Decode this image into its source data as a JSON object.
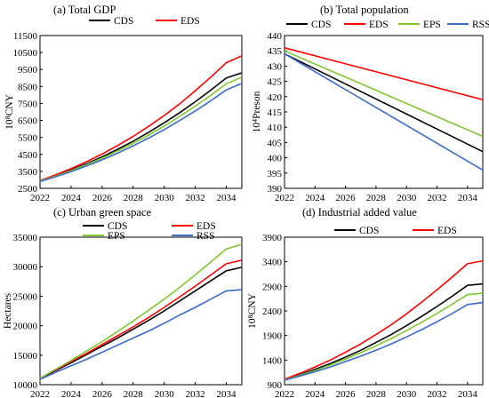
{
  "chart_data": [
    {
      "type": "line",
      "title": "(a) Total GDP",
      "xlabel": "",
      "ylabel": "10⁸CNY",
      "x": [
        2022,
        2023,
        2024,
        2025,
        2026,
        2027,
        2028,
        2029,
        2030,
        2031,
        2032,
        2033,
        2034,
        2035
      ],
      "xticks": [
        "2022",
        "2024",
        "2026",
        "2028",
        "2030",
        "2032",
        "2034"
      ],
      "yticks": [
        "2500",
        "3500",
        "4500",
        "5500",
        "6500",
        "7500",
        "8500",
        "9500",
        "10500",
        "11500"
      ],
      "ylim": [
        2500,
        11500
      ],
      "grid": false,
      "legend": "top",
      "series": [
        {
          "name": "CDS",
          "color": "#000000",
          "values": [
            2950,
            3250,
            3580,
            3950,
            4350,
            4800,
            5280,
            5800,
            6360,
            6960,
            7600,
            8280,
            9000,
            9300
          ]
        },
        {
          "name": "EDS",
          "color": "#ff0000",
          "values": [
            2960,
            3290,
            3660,
            4070,
            4520,
            5020,
            5560,
            6150,
            6790,
            7480,
            8250,
            9050,
            9900,
            10300
          ]
        },
        {
          "values": [
            2930,
            3220,
            3540,
            3900,
            4280,
            4700,
            5150,
            5640,
            6170,
            6740,
            7340,
            7980,
            8660,
            9050
          ]
        },
        {
          "values": [
            2900,
            3180,
            3480,
            3820,
            4180,
            4570,
            5000,
            5460,
            5960,
            6500,
            7060,
            7660,
            8300,
            8680
          ]
        }
      ]
    },
    {
      "type": "line",
      "title": "(b) Total population",
      "xlabel": "",
      "ylabel": "10⁴Preson",
      "x": [
        2022,
        2035
      ],
      "xticks": [
        "2022",
        "2024",
        "2026",
        "2028",
        "2030",
        "2032",
        "2034"
      ],
      "yticks": [
        "390",
        "395",
        "400",
        "405",
        "410",
        "415",
        "420",
        "425",
        "430",
        "435",
        "440"
      ],
      "ylim": [
        390,
        440
      ],
      "grid": false,
      "legend": "top",
      "series": [
        {
          "name": "CDS",
          "color": "#000000",
          "values": [
            434,
            402
          ]
        },
        {
          "name": "EDS",
          "color": "#ff0000",
          "values": [
            436,
            419
          ]
        },
        {
          "name": "EPS",
          "color": "#7fc832",
          "values": [
            435,
            407
          ]
        },
        {
          "name": "RSS",
          "color": "#3a6cc8",
          "values": [
            434,
            396
          ]
        }
      ]
    },
    {
      "type": "line",
      "title": "(c) Urban green space",
      "xlabel": "",
      "ylabel": "Hectares",
      "x": [
        2022,
        2023,
        2024,
        2025,
        2026,
        2027,
        2028,
        2029,
        2030,
        2031,
        2032,
        2033,
        2034,
        2035
      ],
      "xticks": [
        "2022",
        "2024",
        "2026",
        "2028",
        "2030",
        "2032",
        "2034"
      ],
      "yticks": [
        "10000",
        "15000",
        "20000",
        "25000",
        "30000",
        "35000"
      ],
      "ylim": [
        10000,
        35000
      ],
      "grid": false,
      "legend": "top",
      "series": [
        {
          "name": "CDS",
          "color": "#000000",
          "values": [
            11000,
            12400,
            13700,
            15100,
            16500,
            17900,
            19400,
            20900,
            22500,
            24200,
            25900,
            27600,
            29300,
            29900
          ]
        },
        {
          "name": "EDS",
          "color": "#ff0000",
          "values": [
            11100,
            12500,
            13900,
            15300,
            16800,
            18300,
            19800,
            21400,
            23100,
            24900,
            26700,
            28600,
            30500,
            31100
          ]
        },
        {
          "name": "EPS",
          "color": "#7fc832",
          "values": [
            11100,
            12600,
            14100,
            15700,
            17300,
            19000,
            20800,
            22600,
            24500,
            26500,
            28600,
            30800,
            33000,
            33800
          ]
        },
        {
          "name": "RSS",
          "color": "#3a6cc8",
          "values": [
            10900,
            12100,
            13200,
            14300,
            15500,
            16700,
            17900,
            19100,
            20400,
            21800,
            23100,
            24500,
            25900,
            26100
          ]
        }
      ]
    },
    {
      "type": "line",
      "title": "(d) Industrial added value",
      "xlabel": "",
      "ylabel": "10⁸CNY",
      "x": [
        2022,
        2023,
        2024,
        2025,
        2026,
        2027,
        2028,
        2029,
        2030,
        2031,
        2032,
        2033,
        2034,
        2035
      ],
      "xticks": [
        "2022",
        "2024",
        "2026",
        "2028",
        "2030",
        "2032",
        "2034"
      ],
      "yticks": [
        "900",
        "1400",
        "1900",
        "2400",
        "2900",
        "3400",
        "3900"
      ],
      "ylim": [
        900,
        3900
      ],
      "grid": false,
      "legend": "top",
      "series": [
        {
          "name": "CDS",
          "color": "#000000",
          "values": [
            1000,
            1100,
            1210,
            1330,
            1460,
            1600,
            1760,
            1920,
            2100,
            2290,
            2490,
            2700,
            2920,
            2950
          ]
        },
        {
          "name": "EDS",
          "color": "#ff0000",
          "values": [
            1010,
            1130,
            1260,
            1400,
            1560,
            1730,
            1920,
            2120,
            2340,
            2580,
            2830,
            3090,
            3360,
            3420
          ]
        },
        {
          "values": [
            995,
            1090,
            1190,
            1300,
            1420,
            1550,
            1690,
            1840,
            2000,
            2170,
            2350,
            2540,
            2730,
            2760
          ]
        },
        {
          "values": [
            990,
            1075,
            1165,
            1260,
            1370,
            1480,
            1600,
            1730,
            1870,
            2020,
            2180,
            2350,
            2530,
            2570
          ]
        }
      ]
    }
  ]
}
